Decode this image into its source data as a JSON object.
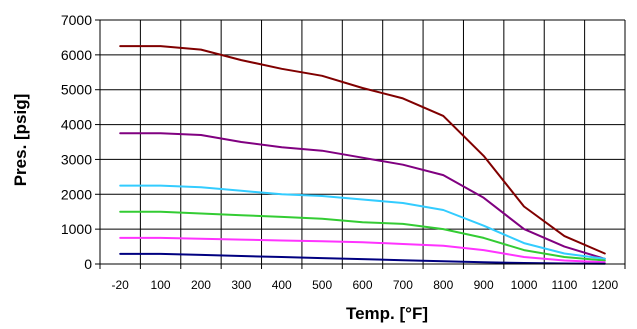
{
  "chart_data": {
    "type": "line",
    "title": "",
    "xlabel": "Temp. [°F]",
    "ylabel": "Pres. [psig]",
    "ylim": [
      0,
      7000
    ],
    "yticks": [
      0,
      1000,
      2000,
      3000,
      4000,
      5000,
      6000,
      7000
    ],
    "categories": [
      "-20",
      "100",
      "200",
      "300",
      "400",
      "500",
      "600",
      "700",
      "800",
      "900",
      "1000",
      "1100",
      "1200"
    ],
    "grid": true,
    "legend": "none",
    "series": [
      {
        "color": "#800000",
        "values": [
          6250,
          6250,
          6150,
          5850,
          5600,
          5400,
          5050,
          4750,
          4250,
          3100,
          1650,
          800,
          300
        ]
      },
      {
        "color": "#800080",
        "values": [
          3750,
          3750,
          3700,
          3500,
          3350,
          3250,
          3050,
          2850,
          2550,
          1900,
          1000,
          500,
          150
        ]
      },
      {
        "color": "#33ccff",
        "values": [
          2250,
          2250,
          2200,
          2100,
          2000,
          1950,
          1850,
          1750,
          1550,
          1100,
          600,
          300,
          150
        ]
      },
      {
        "color": "#33cc33",
        "values": [
          1500,
          1500,
          1450,
          1400,
          1350,
          1300,
          1200,
          1150,
          1000,
          750,
          400,
          200,
          100
        ]
      },
      {
        "color": "#ff33ff",
        "values": [
          750,
          750,
          725,
          700,
          675,
          650,
          625,
          575,
          525,
          400,
          200,
          100,
          50
        ]
      },
      {
        "color": "#000080",
        "values": [
          290,
          290,
          260,
          230,
          200,
          170,
          140,
          110,
          80,
          50,
          30,
          15,
          5
        ]
      }
    ]
  }
}
